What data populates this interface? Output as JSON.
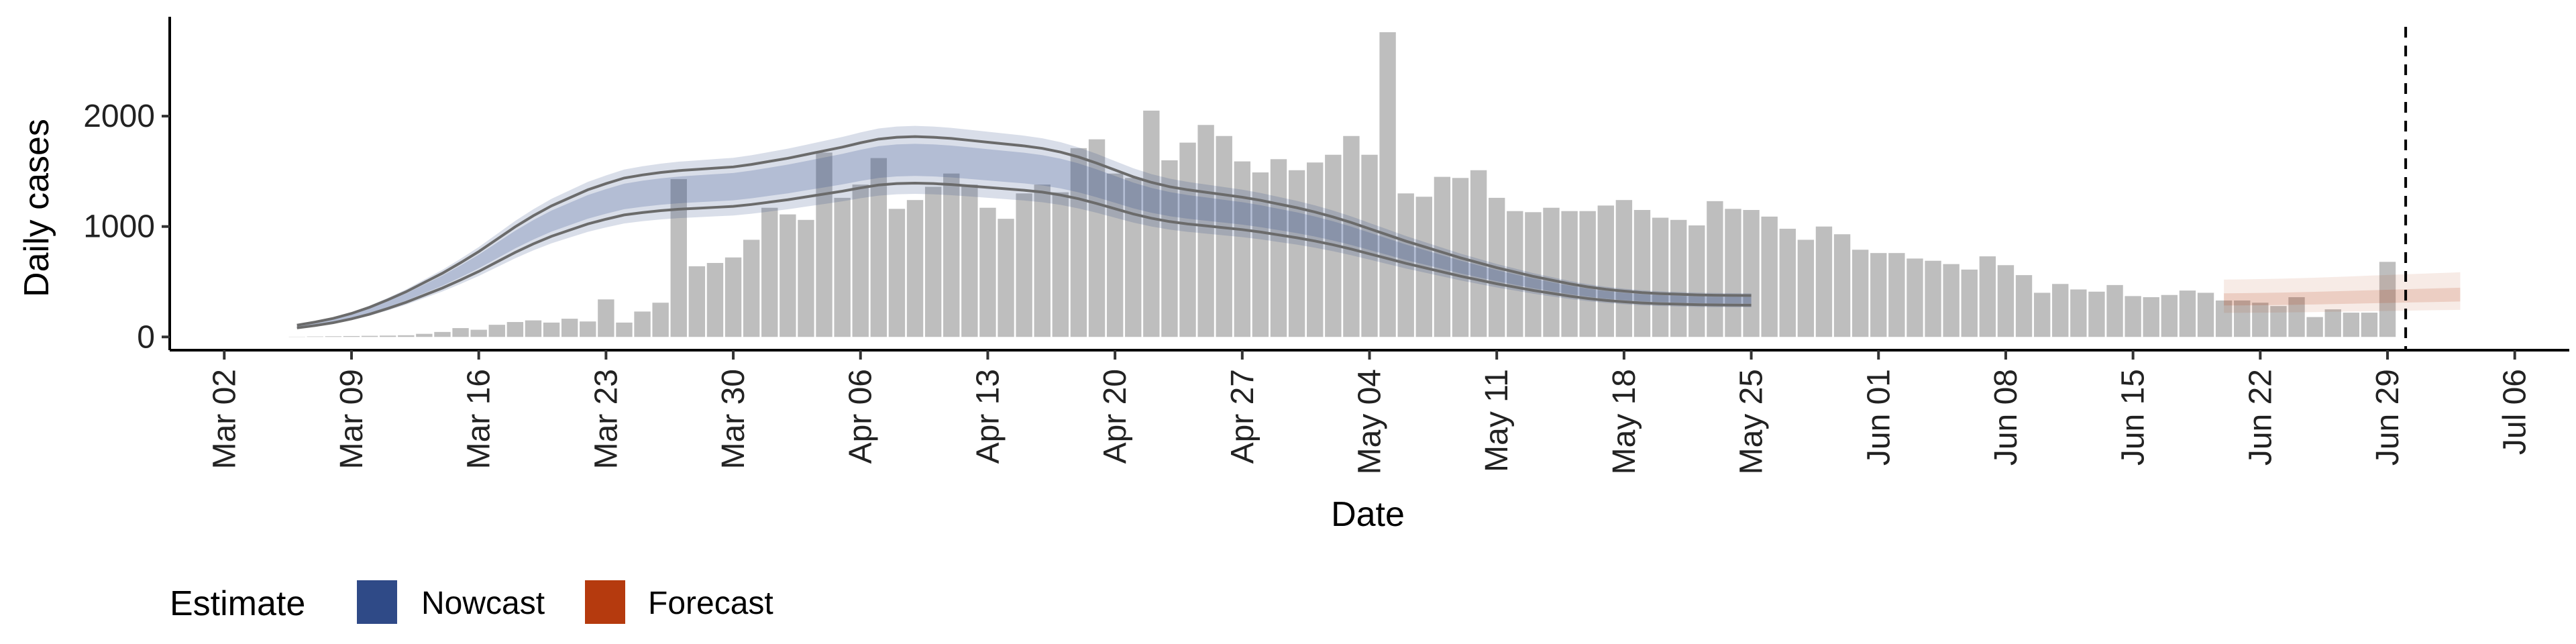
{
  "chart_data": {
    "type": "bar",
    "xlabel": "Date",
    "ylabel": "Daily cases",
    "x_range": [
      "2020-02-28",
      "2020-07-09"
    ],
    "ylim": [
      -120,
      2900
    ],
    "y_ticks": [
      0,
      1000,
      2000
    ],
    "x_ticks": [
      {
        "date": "2020-03-02",
        "label": "Mar 02"
      },
      {
        "date": "2020-03-09",
        "label": "Mar 09"
      },
      {
        "date": "2020-03-16",
        "label": "Mar 16"
      },
      {
        "date": "2020-03-23",
        "label": "Mar 23"
      },
      {
        "date": "2020-03-30",
        "label": "Mar 30"
      },
      {
        "date": "2020-04-06",
        "label": "Apr 06"
      },
      {
        "date": "2020-04-13",
        "label": "Apr 13"
      },
      {
        "date": "2020-04-20",
        "label": "Apr 20"
      },
      {
        "date": "2020-04-27",
        "label": "Apr 27"
      },
      {
        "date": "2020-05-04",
        "label": "May 04"
      },
      {
        "date": "2020-05-11",
        "label": "May 11"
      },
      {
        "date": "2020-05-18",
        "label": "May 18"
      },
      {
        "date": "2020-05-25",
        "label": "May 25"
      },
      {
        "date": "2020-06-01",
        "label": "Jun 01"
      },
      {
        "date": "2020-06-08",
        "label": "Jun 08"
      },
      {
        "date": "2020-06-15",
        "label": "Jun 15"
      },
      {
        "date": "2020-06-22",
        "label": "Jun 22"
      },
      {
        "date": "2020-06-29",
        "label": "Jun 29"
      },
      {
        "date": "2020-07-06",
        "label": "Jul 06"
      }
    ],
    "reported_cases": {
      "start_date": "2020-03-06",
      "values": [
        2,
        4,
        6,
        8,
        10,
        12,
        15,
        28,
        45,
        80,
        65,
        110,
        135,
        150,
        130,
        165,
        140,
        340,
        130,
        230,
        310,
        1430,
        640,
        670,
        720,
        880,
        1170,
        1110,
        1060,
        1670,
        1260,
        1380,
        1620,
        1160,
        1240,
        1360,
        1480,
        1380,
        1170,
        1070,
        1300,
        1380,
        1310,
        1710,
        1790,
        1480,
        1440,
        2050,
        1600,
        1760,
        1920,
        1820,
        1590,
        1490,
        1610,
        1510,
        1580,
        1650,
        1820,
        1650,
        2760,
        1300,
        1270,
        1450,
        1440,
        1510,
        1260,
        1140,
        1130,
        1170,
        1140,
        1140,
        1190,
        1240,
        1150,
        1080,
        1060,
        1010,
        1230,
        1160,
        1150,
        1090,
        980,
        880,
        1000,
        930,
        790,
        760,
        760,
        710,
        690,
        660,
        610,
        730,
        650,
        560,
        400,
        480,
        430,
        410,
        470,
        370,
        360,
        380,
        420,
        400,
        330,
        330,
        310,
        280,
        360,
        180,
        250,
        220,
        220,
        680
      ]
    },
    "estimate_line": {
      "name": "Nowcast",
      "color": "#2f4a87",
      "start_date": "2020-03-06",
      "values": [
        95,
        120,
        150,
        190,
        240,
        300,
        365,
        440,
        515,
        600,
        690,
        790,
        890,
        980,
        1060,
        1125,
        1190,
        1240,
        1285,
        1310,
        1330,
        1345,
        1355,
        1365,
        1375,
        1395,
        1420,
        1445,
        1475,
        1505,
        1535,
        1570,
        1600,
        1615,
        1620,
        1615,
        1605,
        1590,
        1575,
        1560,
        1545,
        1525,
        1495,
        1455,
        1405,
        1350,
        1295,
        1250,
        1215,
        1190,
        1170,
        1150,
        1130,
        1105,
        1075,
        1045,
        1010,
        970,
        925,
        875,
        825,
        775,
        730,
        685,
        640,
        600,
        560,
        525,
        490,
        460,
        430,
        405,
        385,
        370,
        358,
        350,
        345,
        340,
        337,
        336,
        335
      ]
    },
    "forecast_line": {
      "name": "Forecast",
      "color": "#b53a0e",
      "start_date": "2020-06-20",
      "values": [
        335,
        336,
        338,
        340,
        343,
        346,
        350,
        354,
        358,
        362,
        366,
        370,
        374,
        378
      ]
    },
    "vline_date": "2020-06-30",
    "colors": {
      "bars": "#bebebe",
      "axis": "#000000",
      "vline": "#000000",
      "interval": "#6b6b6b"
    },
    "legend": {
      "title": "Estimate",
      "position": "bottom-left",
      "items": [
        {
          "label": "Nowcast",
          "color": "#2f4a87"
        },
        {
          "label": "Forecast",
          "color": "#b53a0e"
        }
      ]
    },
    "grid": false
  }
}
